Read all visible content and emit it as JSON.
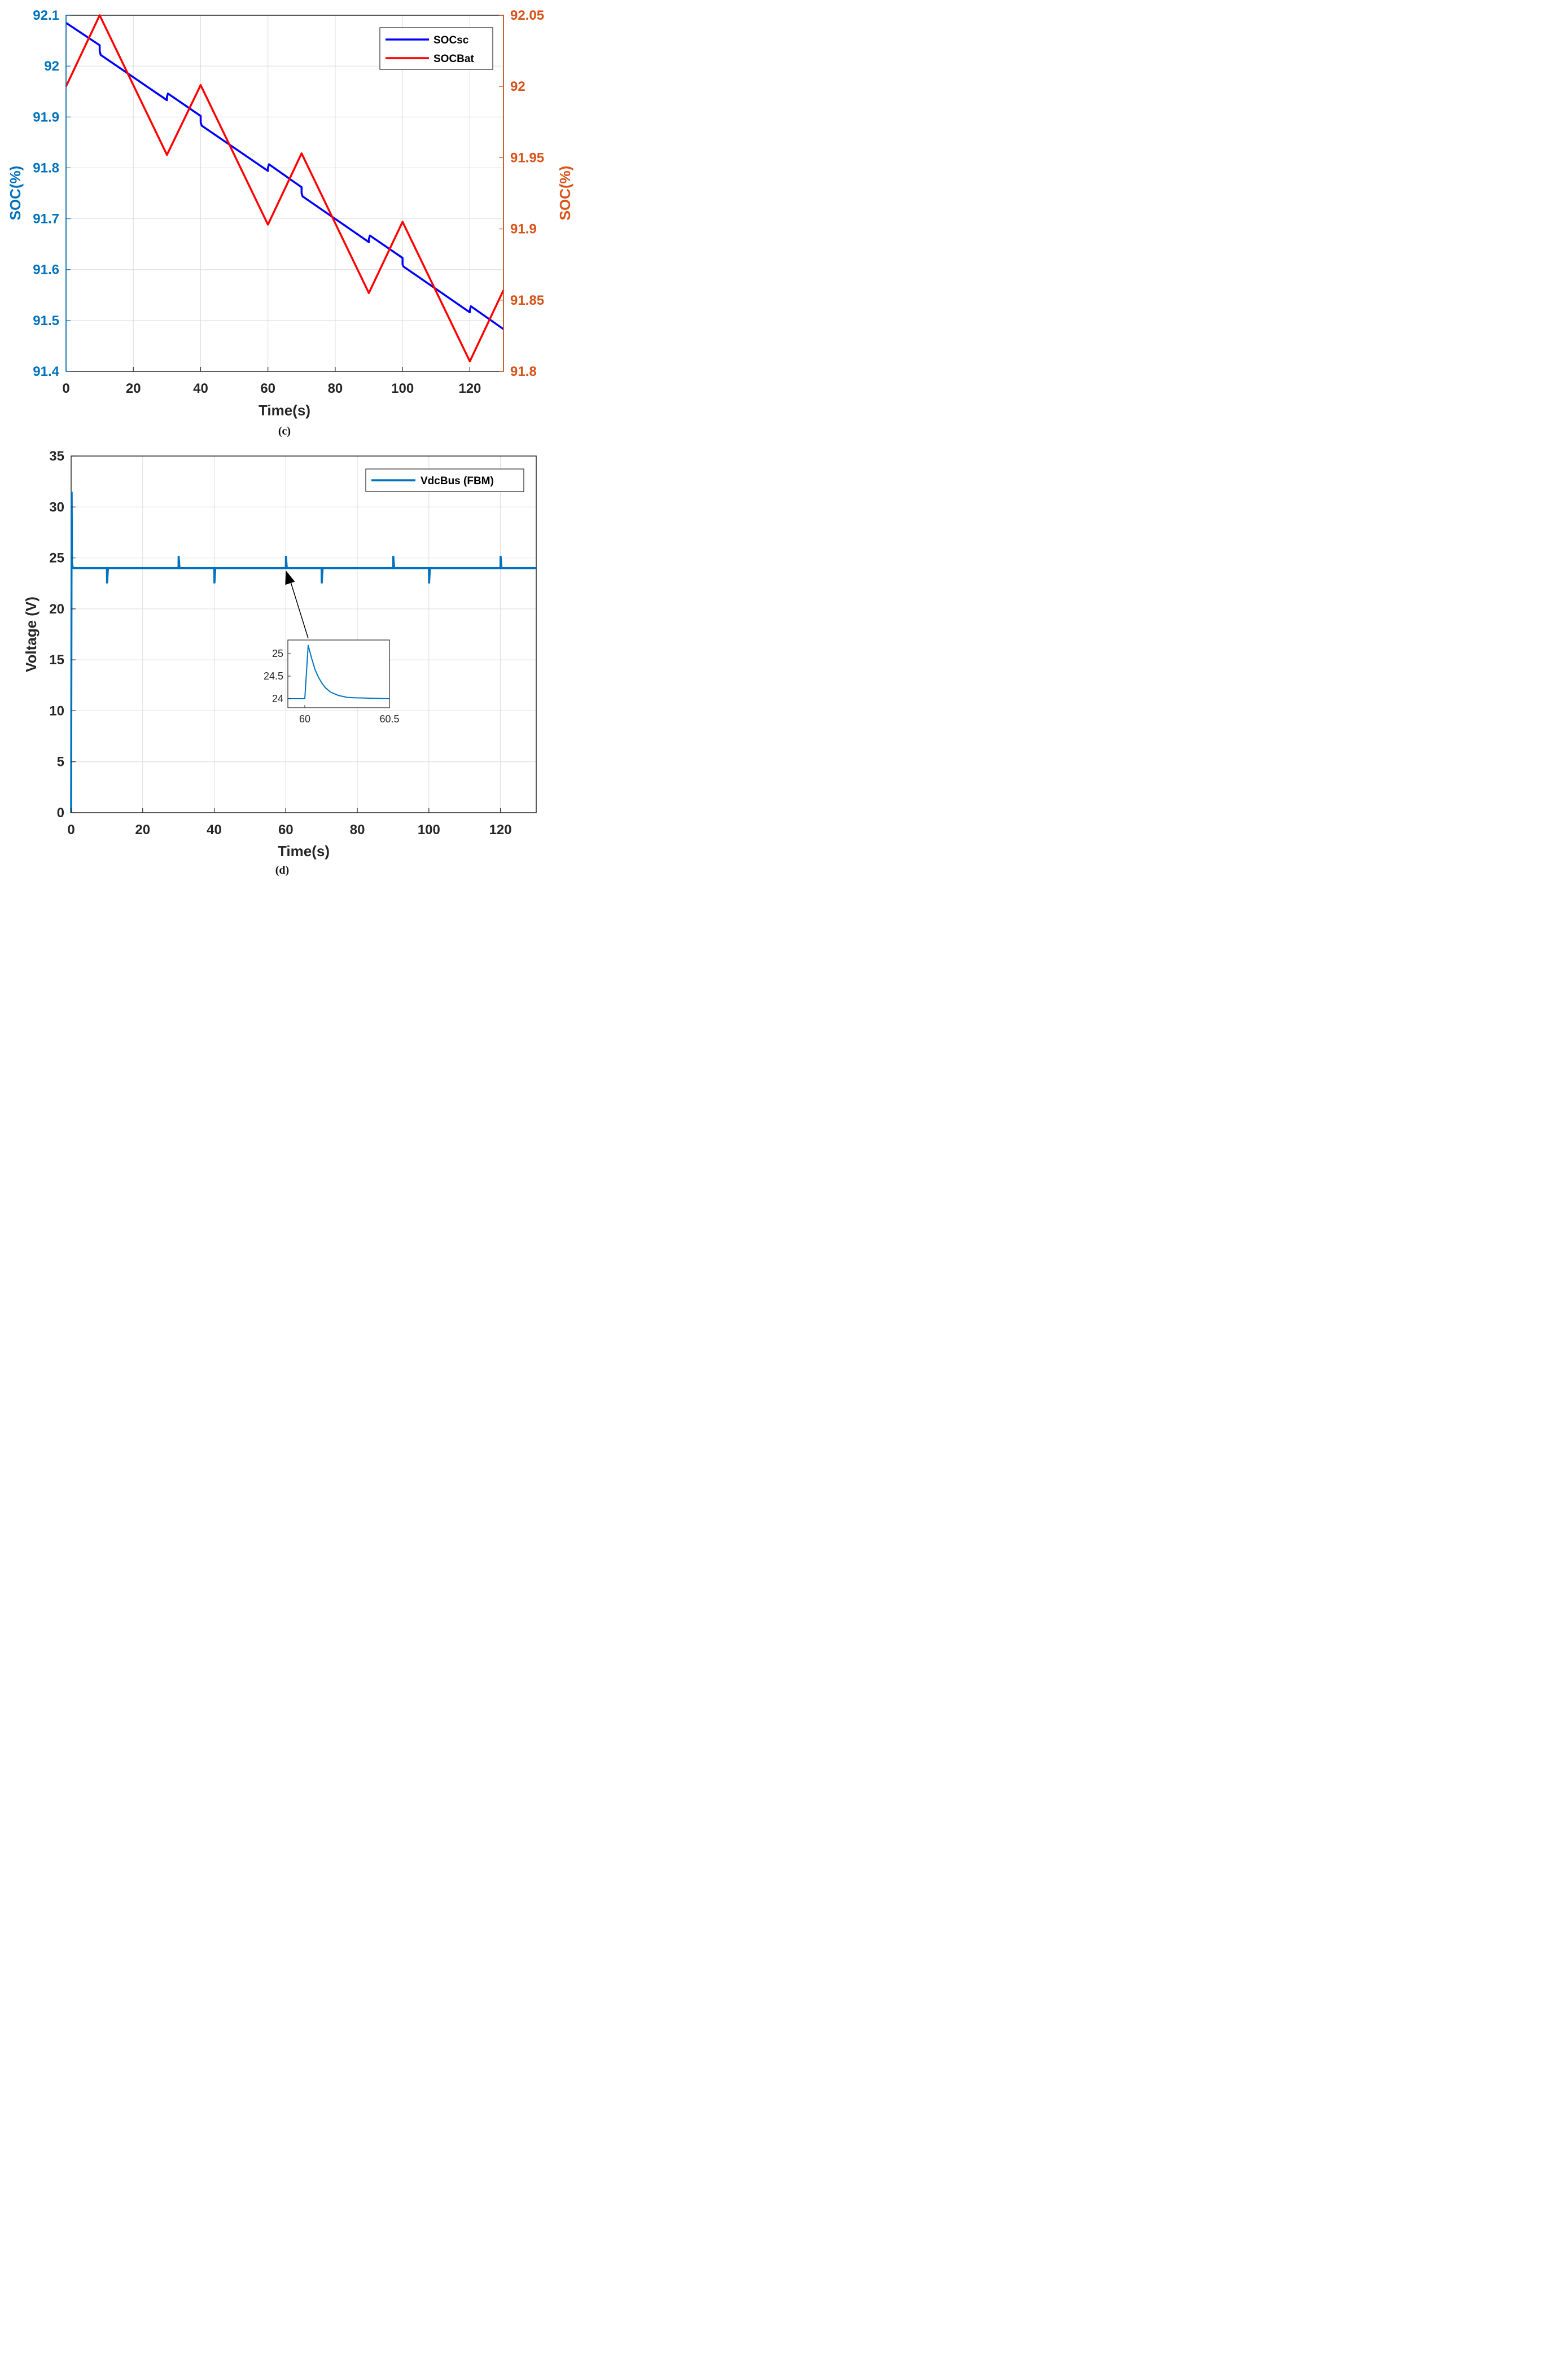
{
  "panels": {
    "c": {
      "label": "(c)",
      "x_label": "Time(s)",
      "y_left_label": "SOC(%)",
      "y_right_label": "SOC(%)",
      "left_color": "#0072BD",
      "right_color": "#D95319",
      "x_ticks": [
        "0",
        "20",
        "40",
        "60",
        "80",
        "100",
        "120"
      ],
      "y_left_ticks": [
        "91.4",
        "91.5",
        "91.6",
        "91.7",
        "91.8",
        "91.9",
        "92",
        "92.1"
      ],
      "y_right_ticks": [
        "91.8",
        "91.85",
        "91.9",
        "91.95",
        "92",
        "92.05"
      ],
      "legend": [
        "SOCsc",
        "SOCBat"
      ]
    },
    "d": {
      "label": "(d)",
      "x_label": "Time(s)",
      "y_label": "Voltage (V)",
      "x_ticks": [
        "0",
        "20",
        "40",
        "60",
        "80",
        "100",
        "120"
      ],
      "y_ticks": [
        "0",
        "5",
        "10",
        "15",
        "20",
        "25",
        "30",
        "35"
      ],
      "legend": [
        "VdcBus (FBM)"
      ],
      "inset": {
        "x_ticks": [
          "60",
          "60.5"
        ],
        "y_ticks": [
          "24",
          "24.5",
          "25"
        ]
      }
    }
  },
  "chart_data": [
    {
      "id": "c",
      "type": "line",
      "title": "",
      "xlabel": "Time(s)",
      "ylabel": "SOC(%)",
      "ylabel_right": "SOC(%)",
      "xlim": [
        0,
        130
      ],
      "ylim": [
        91.4,
        92.1
      ],
      "ylim_right": [
        91.8,
        92.05
      ],
      "grid": true,
      "legend_position": "top-right",
      "series": [
        {
          "name": "SOCsc",
          "axis": "left",
          "color": "#0000FF",
          "x": [
            0,
            10,
            10,
            10.3,
            30,
            30,
            30.3,
            40,
            40,
            40.3,
            60,
            60,
            60.3,
            70,
            70,
            70.3,
            90,
            90,
            90.3,
            100,
            100,
            100.3,
            120,
            120,
            120.3,
            130
          ],
          "y": [
            92.085,
            92.041,
            92.03,
            92.022,
            91.933,
            91.94,
            91.946,
            91.902,
            91.89,
            91.883,
            91.794,
            91.8,
            91.807,
            91.762,
            91.75,
            91.744,
            91.654,
            91.66,
            91.667,
            91.623,
            91.61,
            91.606,
            91.516,
            91.52,
            91.528,
            91.483
          ]
        },
        {
          "name": "SOCBat",
          "axis": "right",
          "color": "#FF0000",
          "x": [
            0,
            10,
            30,
            40,
            60,
            70,
            90,
            100,
            120,
            130
          ],
          "y": [
            92.0,
            92.05,
            91.952,
            92.001,
            91.903,
            91.953,
            91.855,
            91.905,
            91.807,
            91.857
          ]
        }
      ]
    },
    {
      "id": "d",
      "type": "line",
      "title": "",
      "xlabel": "Time(s)",
      "ylabel": "Voltage (V)",
      "xlim": [
        0,
        130
      ],
      "ylim": [
        0,
        35
      ],
      "grid": true,
      "legend_position": "top-right",
      "series": [
        {
          "name": "VdcBus (FBM)",
          "color": "#0072BD",
          "x": [
            0,
            0.15,
            0.25,
            0.5,
            10,
            10.05,
            10.3,
            30,
            30.05,
            30.3,
            40,
            40.05,
            40.3,
            60,
            60.05,
            60.3,
            70,
            70.05,
            70.3,
            90,
            90.05,
            90.3,
            100,
            100.05,
            100.3,
            120,
            120.05,
            120.3,
            130
          ],
          "y": [
            0,
            31.5,
            24.5,
            24,
            24,
            22.5,
            24,
            24,
            25.2,
            24,
            24,
            22.5,
            24,
            24,
            25.2,
            24,
            24,
            22.5,
            24,
            24,
            25.2,
            24,
            24,
            22.5,
            24,
            24,
            25.2,
            24,
            24
          ]
        }
      ],
      "inset": {
        "xlim": [
          59.9,
          60.5
        ],
        "ylim": [
          23.8,
          25.3
        ],
        "x": [
          59.9,
          60.0,
          60.02,
          60.04,
          60.06,
          60.08,
          60.1,
          60.12,
          60.15,
          60.2,
          60.25,
          60.3,
          60.4,
          60.5
        ],
        "y": [
          24.0,
          24.0,
          25.18,
          24.9,
          24.65,
          24.48,
          24.35,
          24.25,
          24.15,
          24.07,
          24.03,
          24.02,
          24.01,
          24.0
        ],
        "annotation_arrow_target_x": 60,
        "annotation_arrow_target_y": 24
      }
    }
  ]
}
